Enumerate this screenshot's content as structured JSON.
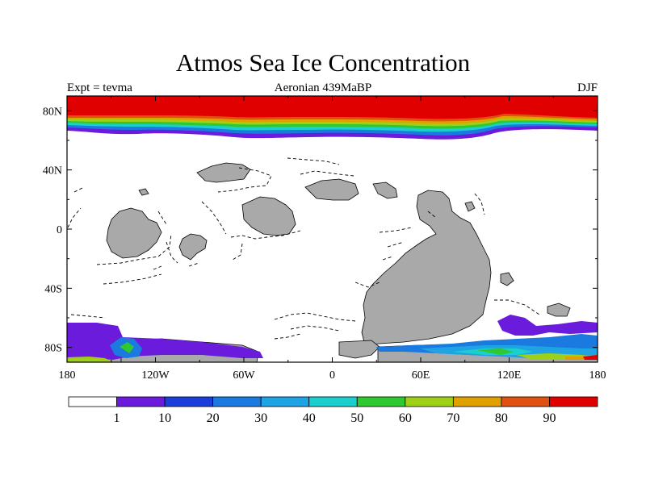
{
  "title": "Atmos Sea Ice Concentration",
  "subtitle_left": "Expt = tevma",
  "subtitle_center": "Aeronian 439MaBP",
  "subtitle_right": "DJF",
  "map": {
    "lon_range": [
      -180,
      180
    ],
    "lat_range": [
      -90,
      90
    ],
    "x_ticks": [
      {
        "lon": -180,
        "label": "180"
      },
      {
        "lon": -120,
        "label": "120W"
      },
      {
        "lon": -60,
        "label": "60W"
      },
      {
        "lon": 0,
        "label": "0"
      },
      {
        "lon": 60,
        "label": "60E"
      },
      {
        "lon": 120,
        "label": "120E"
      },
      {
        "lon": 180,
        "label": "180"
      }
    ],
    "y_ticks": [
      {
        "lat": 80,
        "label": "80N"
      },
      {
        "lat": 40,
        "label": "40N"
      },
      {
        "lat": 0,
        "label": "0"
      },
      {
        "lat": -40,
        "label": "40S"
      },
      {
        "lat": -80,
        "label": "80S"
      }
    ],
    "land_color": "#a9a9a9",
    "ocean_color": "#ffffff"
  },
  "colorbar": {
    "colors": [
      "#ffffff",
      "#6a1bdc",
      "#1c3fdc",
      "#1a7ae0",
      "#1ea4e4",
      "#1ccfcf",
      "#30c830",
      "#9fd018",
      "#e0a000",
      "#e05010",
      "#e00000"
    ],
    "labels": [
      "1",
      "10",
      "20",
      "30",
      "40",
      "50",
      "60",
      "70",
      "80",
      "90"
    ]
  }
}
